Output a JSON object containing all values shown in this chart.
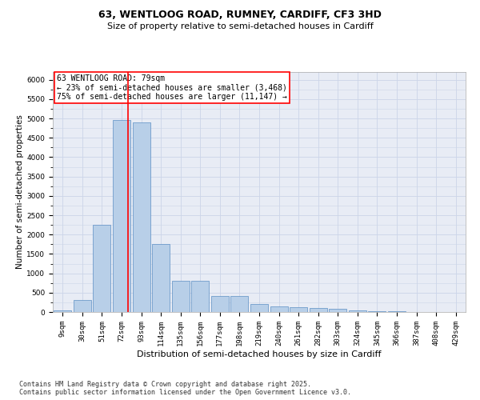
{
  "title_line1": "63, WENTLOOG ROAD, RUMNEY, CARDIFF, CF3 3HD",
  "title_line2": "Size of property relative to semi-detached houses in Cardiff",
  "xlabel": "Distribution of semi-detached houses by size in Cardiff",
  "ylabel": "Number of semi-detached properties",
  "categories": [
    "9sqm",
    "30sqm",
    "51sqm",
    "72sqm",
    "93sqm",
    "114sqm",
    "135sqm",
    "156sqm",
    "177sqm",
    "198sqm",
    "219sqm",
    "240sqm",
    "261sqm",
    "282sqm",
    "303sqm",
    "324sqm",
    "345sqm",
    "366sqm",
    "387sqm",
    "408sqm",
    "429sqm"
  ],
  "values": [
    40,
    310,
    2250,
    4960,
    4900,
    1750,
    800,
    800,
    420,
    420,
    200,
    150,
    130,
    100,
    75,
    50,
    30,
    15,
    10,
    5,
    3
  ],
  "bar_color": "#b8cfe8",
  "bar_edge_color": "#5b8ec4",
  "vline_color": "red",
  "annotation_box_text": "63 WENTLOOG ROAD: 79sqm\n← 23% of semi-detached houses are smaller (3,468)\n75% of semi-detached houses are larger (11,147) →",
  "ylim": [
    0,
    6200
  ],
  "yticks": [
    0,
    500,
    1000,
    1500,
    2000,
    2500,
    3000,
    3500,
    4000,
    4500,
    5000,
    5500,
    6000
  ],
  "grid_color": "#ccd5e8",
  "background_color": "#e8ecf5",
  "footer_text": "Contains HM Land Registry data © Crown copyright and database right 2025.\nContains public sector information licensed under the Open Government Licence v3.0.",
  "title_fontsize": 9,
  "subtitle_fontsize": 8,
  "xlabel_fontsize": 8,
  "ylabel_fontsize": 7.5,
  "tick_fontsize": 6.5,
  "annotation_fontsize": 7,
  "footer_fontsize": 6
}
